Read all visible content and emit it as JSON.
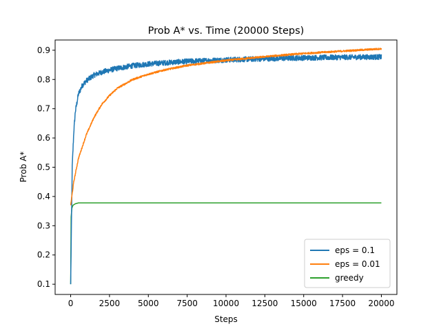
{
  "chart_data": {
    "type": "line",
    "title": "Prob A* vs. Time (20000 Steps)",
    "xlabel": "Steps",
    "ylabel": "Prob A*",
    "xlim": [
      -1000,
      21000
    ],
    "ylim": [
      0.065,
      0.935
    ],
    "xticks": [
      0,
      2500,
      5000,
      7500,
      10000,
      12500,
      15000,
      17500,
      20000
    ],
    "yticks": [
      0.1,
      0.2,
      0.3,
      0.4,
      0.5,
      0.6,
      0.7,
      0.8,
      0.9
    ],
    "xtick_labels": [
      "0",
      "2500",
      "5000",
      "7500",
      "10000",
      "12500",
      "15000",
      "17500",
      "20000"
    ],
    "ytick_labels": [
      "0.1",
      "0.2",
      "0.3",
      "0.4",
      "0.5",
      "0.6",
      "0.7",
      "0.8",
      "0.9"
    ],
    "legend_position": "lower-right",
    "grid": false,
    "series": [
      {
        "name": "eps = 0.1",
        "color": "#1f77b4",
        "noise": 0.009,
        "x": [
          0,
          100,
          200,
          300,
          500,
          750,
          1000,
          1500,
          2000,
          2500,
          3000,
          4000,
          5000,
          6000,
          7500,
          10000,
          12500,
          15000,
          17500,
          20000
        ],
        "values": [
          0.1,
          0.5,
          0.62,
          0.69,
          0.75,
          0.78,
          0.795,
          0.815,
          0.825,
          0.832,
          0.838,
          0.847,
          0.853,
          0.857,
          0.862,
          0.867,
          0.871,
          0.874,
          0.876,
          0.877
        ]
      },
      {
        "name": "eps = 0.01",
        "color": "#ff7f0e",
        "noise": 0.003,
        "x": [
          0,
          200,
          500,
          1000,
          1500,
          2000,
          2500,
          3000,
          4000,
          5000,
          6000,
          7500,
          10000,
          12500,
          15000,
          17500,
          20000
        ],
        "values": [
          0.37,
          0.45,
          0.53,
          0.61,
          0.67,
          0.715,
          0.745,
          0.77,
          0.8,
          0.818,
          0.832,
          0.848,
          0.865,
          0.878,
          0.889,
          0.897,
          0.905
        ]
      },
      {
        "name": "greedy",
        "color": "#2ca02c",
        "noise": 0,
        "x": [
          0,
          30,
          80,
          150,
          300,
          500,
          1000,
          5000,
          10000,
          15000,
          20000
        ],
        "values": [
          0.1,
          0.33,
          0.36,
          0.37,
          0.375,
          0.378,
          0.378,
          0.378,
          0.378,
          0.378,
          0.378
        ]
      }
    ]
  }
}
